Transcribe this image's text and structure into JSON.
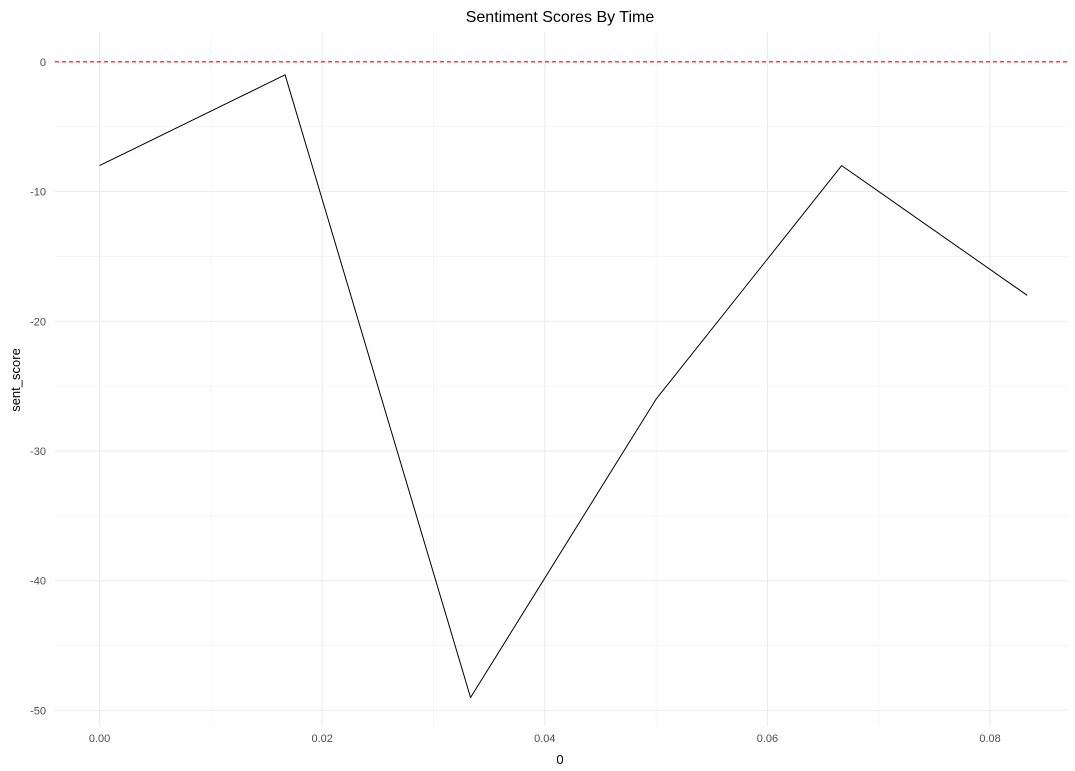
{
  "chart_data": {
    "type": "line",
    "title": "Sentiment Scores By Time",
    "xlabel": "0",
    "ylabel": "sent_score",
    "xlim": [
      -0.004,
      0.087
    ],
    "ylim": [
      -51.2,
      2.3
    ],
    "x_ticks": [
      0.0,
      0.02,
      0.04,
      0.06,
      0.08
    ],
    "x_tick_labels": [
      "0.00",
      "0.02",
      "0.04",
      "0.06",
      "0.08"
    ],
    "y_ticks": [
      0,
      -10,
      -20,
      -30,
      -40,
      -50
    ],
    "y_tick_labels": [
      "0",
      "-10",
      "-20",
      "-30",
      "-40",
      "-50"
    ],
    "grid": true,
    "series": [
      {
        "x": [
          0.0,
          0.01667,
          0.03333,
          0.05,
          0.06667,
          0.08333
        ],
        "y": [
          -8,
          -1,
          -49,
          -26,
          -8,
          -18
        ],
        "color": "#000000"
      }
    ],
    "reference_line": {
      "y": 0,
      "color": "#ff0000",
      "style": "dashed"
    }
  }
}
